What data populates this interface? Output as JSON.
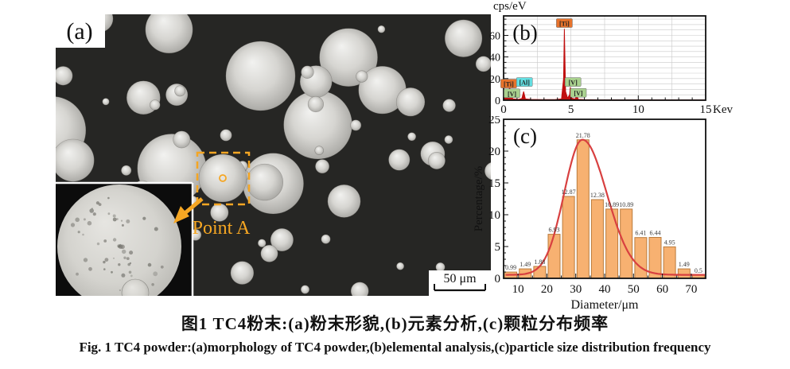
{
  "figure": {
    "caption_zh": "图1  TC4粉末:(a)粉末形貌,(b)元素分析,(c)颗粒分布频率",
    "caption_en": "Fig. 1  TC4 powder:(a)morphology of TC4 powder,(b)elemental analysis,(c)particle size distribution frequency"
  },
  "panel_a": {
    "label": "(a)",
    "annotation": "Point A",
    "scale_bar_label": "50 μm",
    "annotation_color": "#f5a623"
  },
  "chart_data": [
    {
      "id": "eds-spectrum",
      "type": "line",
      "panel_label": "(b)",
      "ylabel": "cps/eV",
      "x_unit": "Kev",
      "xlim": [
        0,
        15
      ],
      "ylim": [
        0,
        78
      ],
      "x_ticks": [
        0,
        5,
        10,
        15
      ],
      "y_ticks": [
        0,
        20,
        40,
        60
      ],
      "grid": true,
      "series": [
        {
          "name": "EDS counts",
          "color": "#c00f0f",
          "points": [
            [
              0,
              0.5
            ],
            [
              0.1,
              8
            ],
            [
              0.18,
              2
            ],
            [
              0.32,
              2.5
            ],
            [
              0.45,
              13
            ],
            [
              0.55,
              4
            ],
            [
              0.7,
              1.2
            ],
            [
              1.1,
              0.8
            ],
            [
              1.35,
              1.5
            ],
            [
              1.49,
              8
            ],
            [
              1.62,
              1.2
            ],
            [
              2,
              0.7
            ],
            [
              2.8,
              0.5
            ],
            [
              3.8,
              0.6
            ],
            [
              4.3,
              1.2
            ],
            [
              4.45,
              20
            ],
            [
              4.51,
              66
            ],
            [
              4.6,
              8
            ],
            [
              4.75,
              2
            ],
            [
              4.9,
              5
            ],
            [
              4.95,
              12
            ],
            [
              5.05,
              2
            ],
            [
              5.3,
              1
            ],
            [
              5.43,
              4
            ],
            [
              5.55,
              0.8
            ],
            [
              6,
              0.5
            ],
            [
              7,
              0.4
            ],
            [
              8.5,
              0.4
            ],
            [
              10,
              0.35
            ],
            [
              12,
              0.3
            ],
            [
              15,
              0.3
            ]
          ]
        }
      ],
      "peak_labels": [
        {
          "text": "[Ti]",
          "x": 0.38,
          "y": 15,
          "bg": "#e8732c"
        },
        {
          "text": "[V]",
          "x": 0.62,
          "y": 6,
          "bg": "#a9d18e"
        },
        {
          "text": "[Al]",
          "x": 1.55,
          "y": 16.5,
          "bg": "#63dfe2"
        },
        {
          "text": "[Ti]",
          "x": 4.51,
          "y": 71,
          "bg": "#e8732c"
        },
        {
          "text": "[V]",
          "x": 5.15,
          "y": 16.5,
          "bg": "#a9d18e"
        },
        {
          "text": "[V]",
          "x": 5.55,
          "y": 6.5,
          "bg": "#a9d18e"
        }
      ]
    },
    {
      "id": "particle-size-distribution",
      "type": "bar",
      "panel_label": "(c)",
      "xlabel": "Diameter/μm",
      "ylabel": "Percentage/%",
      "xlim": [
        5,
        75
      ],
      "ylim": [
        0,
        25
      ],
      "x_ticks": [
        10,
        20,
        30,
        40,
        50,
        60,
        70
      ],
      "y_ticks": [
        0,
        5,
        10,
        15,
        20,
        25
      ],
      "bin_start": 5,
      "bin_width": 5,
      "values": [
        0.99,
        1.49,
        1.88,
        6.93,
        12.87,
        21.78,
        12.38,
        10.89,
        10.89,
        6.41,
        6.44,
        4.95,
        1.49,
        0.5
      ],
      "value_labels": [
        "0.99",
        "1.49",
        "1.88",
        "6.93",
        "12.87",
        "21.78",
        "12.38",
        "10.89",
        "10.89",
        "6.41",
        "6.44",
        "4.95",
        "1.49",
        "0.5"
      ],
      "bar_color": "#f7b171",
      "bar_border": "#ba7b3c",
      "fit_curve": {
        "type": "asymmetric-gaussian",
        "peak_x": 32.3,
        "peak_y": 21.8,
        "sigma_left": 6.3,
        "sigma_right": 8.4,
        "baseline": 0.55,
        "color": "#d84040"
      }
    }
  ]
}
